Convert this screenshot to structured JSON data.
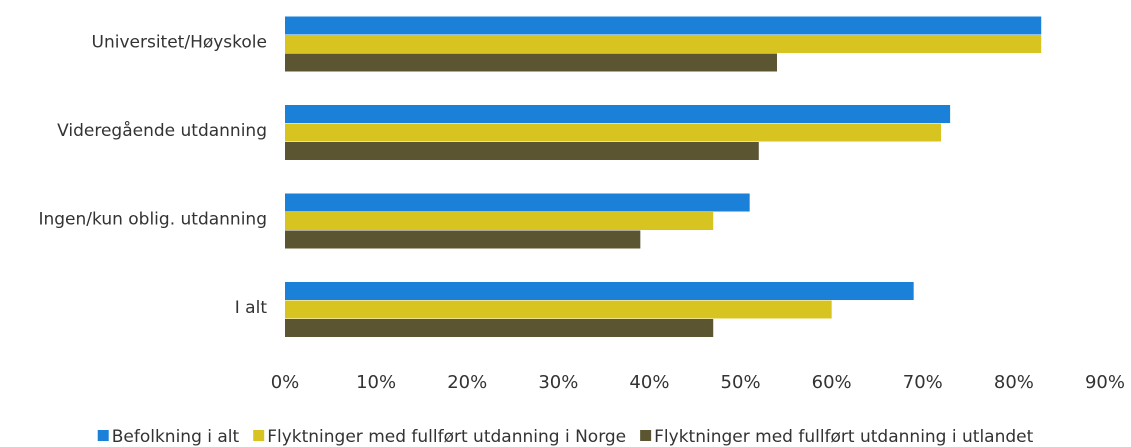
{
  "chart_data": {
    "type": "hbar",
    "categories": [
      "Universitet/Høyskole",
      "Videregående utdanning",
      "Ingen/kun oblig. utdanning",
      "I alt"
    ],
    "series": [
      {
        "name": "Befolkning i alt",
        "color": "#1a80d8",
        "values": [
          83,
          73,
          51,
          69
        ]
      },
      {
        "name": "Flyktninger med fullført utdanning i Norge",
        "color": "#d8c420",
        "values": [
          83,
          72,
          47,
          60
        ]
      },
      {
        "name": "Flyktninger med fullført utdanning i utlandet",
        "color": "#5b5532",
        "values": [
          54,
          52,
          39,
          47
        ]
      }
    ],
    "xlim": [
      0,
      90
    ],
    "xticks": [
      {
        "value": 0,
        "label": "0%"
      },
      {
        "value": 10,
        "label": "10%"
      },
      {
        "value": 20,
        "label": "20%"
      },
      {
        "value": 30,
        "label": "30%"
      },
      {
        "value": 40,
        "label": "40%"
      },
      {
        "value": 50,
        "label": "50%"
      },
      {
        "value": 60,
        "label": "60%"
      },
      {
        "value": 70,
        "label": "70%"
      },
      {
        "value": 80,
        "label": "80%"
      },
      {
        "value": 90,
        "label": "90%"
      }
    ],
    "grid": false,
    "legend": "bottom"
  }
}
